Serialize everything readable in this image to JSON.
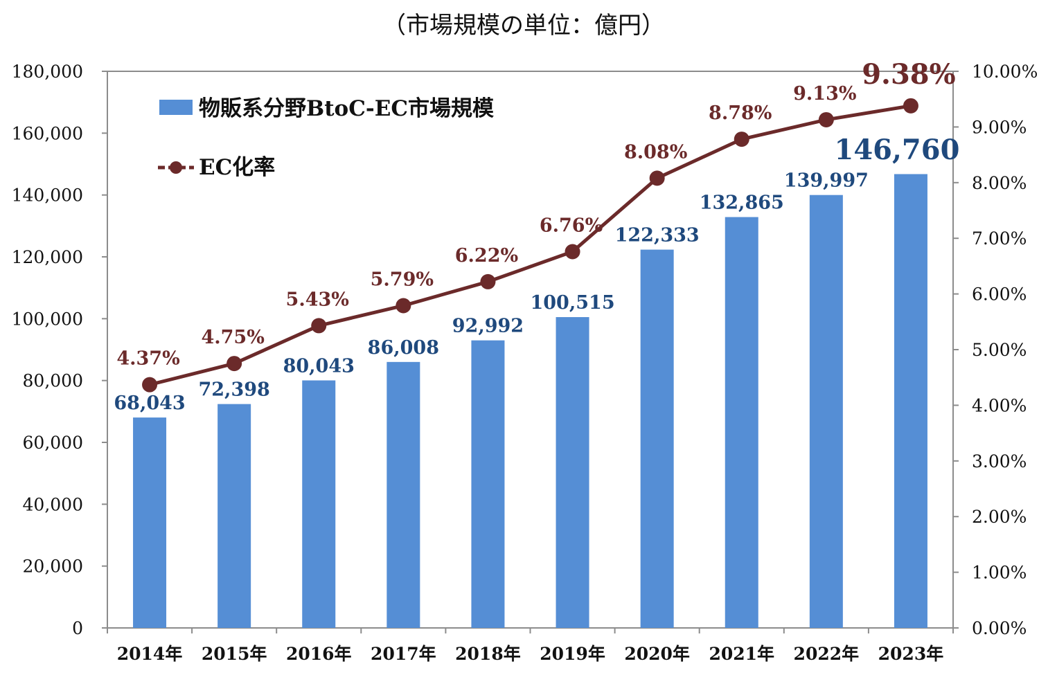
{
  "chart_data": {
    "type": "bar",
    "title": "（市場規模の単位：億円）",
    "categories": [
      "2014年",
      "2015年",
      "2016年",
      "2017年",
      "2018年",
      "2019年",
      "2020年",
      "2021年",
      "2022年",
      "2023年"
    ],
    "series": [
      {
        "name": "物販系分野BtoC-EC市場規模",
        "type": "bar",
        "axis": "left",
        "values": [
          68043,
          72398,
          80043,
          86008,
          92992,
          100515,
          122333,
          132865,
          139997,
          146760
        ],
        "labels": [
          "68,043",
          "72,398",
          "80,043",
          "86,008",
          "92,992",
          "100,515",
          "122,333",
          "132,865",
          "139,997",
          "146,760"
        ],
        "color": "#558ed5",
        "label_color": "#1f497d"
      },
      {
        "name": "EC化率",
        "type": "line",
        "axis": "right",
        "values": [
          4.37,
          4.75,
          5.43,
          5.79,
          6.22,
          6.76,
          8.08,
          8.78,
          9.13,
          9.38
        ],
        "labels": [
          "4.37%",
          "4.75%",
          "5.43%",
          "5.79%",
          "6.22%",
          "6.76%",
          "8.08%",
          "8.78%",
          "9.13%",
          "9.38%"
        ],
        "color": "#6b2a2a"
      }
    ],
    "y_left": {
      "lim": [
        0,
        180000
      ],
      "ticks": [
        "0",
        "20,000",
        "40,000",
        "60,000",
        "80,000",
        "100,000",
        "120,000",
        "140,000",
        "160,000",
        "180,000"
      ]
    },
    "y_right": {
      "lim": [
        0,
        10
      ],
      "ticks": [
        "0.00%",
        "1.00%",
        "2.00%",
        "3.00%",
        "4.00%",
        "5.00%",
        "6.00%",
        "7.00%",
        "8.00%",
        "9.00%",
        "10.00%"
      ]
    },
    "grid": false,
    "legend": {
      "placement": "top-left"
    }
  }
}
